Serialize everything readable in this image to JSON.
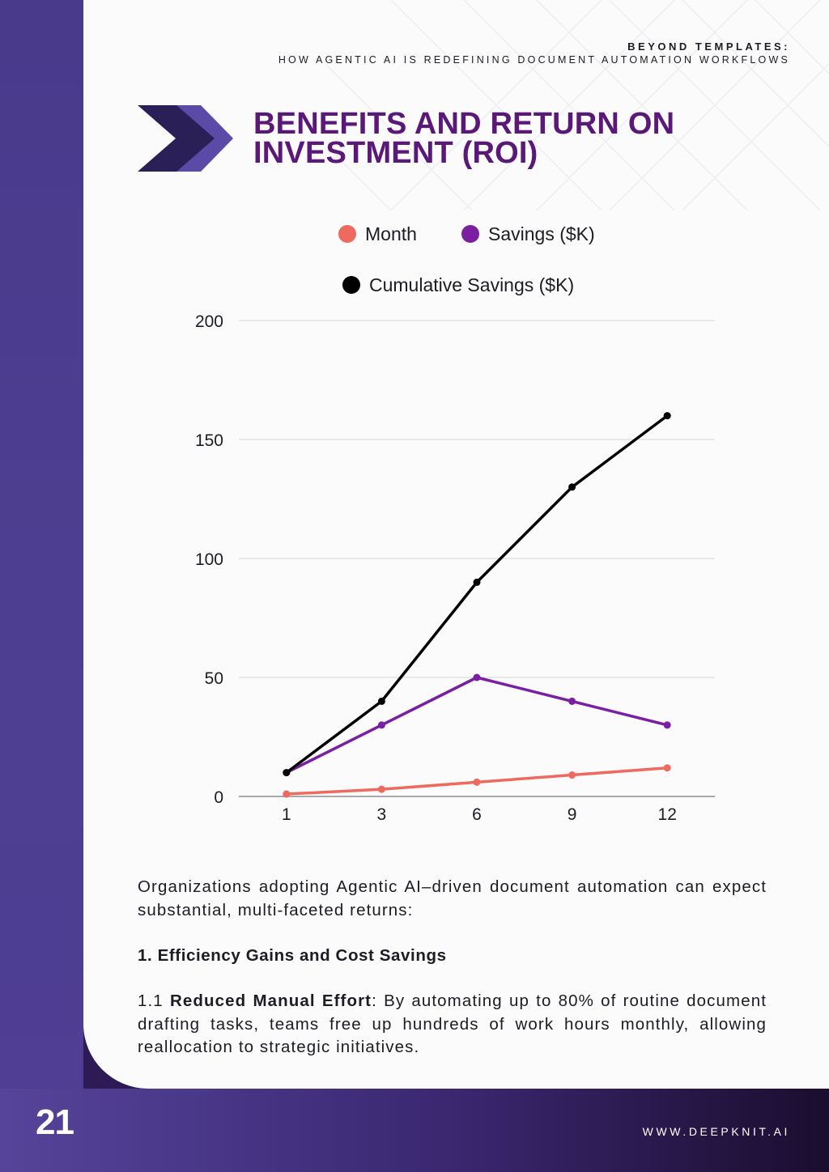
{
  "header": {
    "line1": "BEYOND TEMPLATES:",
    "line2": "HOW AGENTIC AI IS REDEFINING DOCUMENT AUTOMATION WORKFLOWS"
  },
  "title": {
    "line1": "BENEFITS AND RETURN ON",
    "line2": "INVESTMENT (ROI)"
  },
  "colors": {
    "title": "#5a1878",
    "month_series": "#ee6a5e",
    "savings_series": "#7b1fa2",
    "cumulative_series": "#000000",
    "sidebar": "#4a3a8c"
  },
  "chart_data": {
    "type": "line",
    "categories": [
      "1",
      "3",
      "6",
      "9",
      "12"
    ],
    "series": [
      {
        "name": "Month",
        "values": [
          1,
          3,
          6,
          9,
          12
        ],
        "color": "#ee6a5e"
      },
      {
        "name": "Savings ($K)",
        "values": [
          10,
          30,
          50,
          40,
          30
        ],
        "color": "#7b1fa2"
      },
      {
        "name": "Cumulative Savings ($K)",
        "values": [
          10,
          40,
          90,
          130,
          160
        ],
        "color": "#000000"
      }
    ],
    "yticks": [
      0,
      50,
      100,
      150,
      200
    ],
    "ylim": [
      0,
      200
    ],
    "grid": true,
    "legend_position": "top"
  },
  "body": {
    "intro": "Organizations adopting Agentic AI–driven document automation can expect substantial, multi-faceted returns:",
    "section_heading": "1. Efficiency Gains and Cost Savings",
    "item_number": "1.1",
    "item_label": "Reduced Manual Effort",
    "item_text": ": By automating up to 80% of routine document drafting tasks, teams free up hundreds of work hours monthly, allowing reallocation to strategic initiatives."
  },
  "footer": {
    "page_number": "21",
    "website": "WWW.DEEPKNIT.AI"
  }
}
